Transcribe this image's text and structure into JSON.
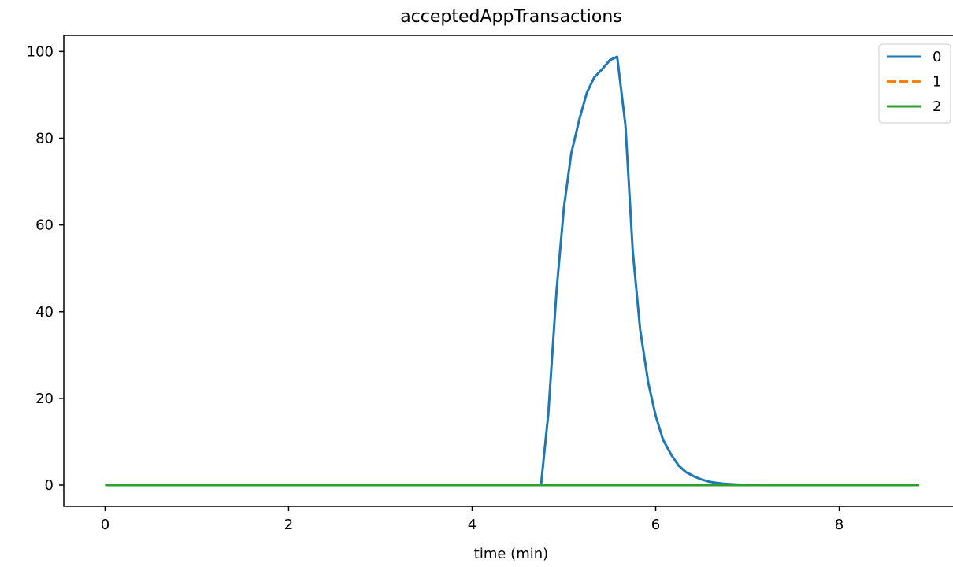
{
  "chart_data": {
    "type": "line",
    "title": "acceptedAppTransactions",
    "xlabel": "time (min)",
    "ylabel": "",
    "xlim": [
      -0.45,
      9.3
    ],
    "ylim": [
      -4.9,
      103.7
    ],
    "xticks": [
      0,
      2,
      4,
      6,
      8
    ],
    "yticks": [
      0,
      20,
      40,
      60,
      80,
      100
    ],
    "grid": false,
    "legend_position": "top-right",
    "series": [
      {
        "name": "0",
        "color": "#1f77b4",
        "style": "solid",
        "x": [
          0,
          0.5,
          1,
          1.5,
          2,
          2.5,
          3,
          3.5,
          4,
          4.5,
          4.75,
          4.83,
          4.92,
          5.0,
          5.08,
          5.17,
          5.25,
          5.33,
          5.42,
          5.5,
          5.58,
          5.67,
          5.75,
          5.83,
          5.92,
          6.0,
          6.08,
          6.17,
          6.25,
          6.33,
          6.42,
          6.5,
          6.58,
          6.67,
          6.75,
          6.83,
          6.92,
          7.0,
          7.17,
          7.33,
          7.5,
          7.75,
          8.0,
          8.5,
          8.87
        ],
        "y": [
          0,
          0,
          0,
          0,
          0,
          0,
          0,
          0,
          0,
          0,
          0,
          16.5,
          45,
          64,
          76.5,
          84.5,
          90.5,
          94,
          96,
          98,
          98.8,
          83,
          54,
          36,
          23.5,
          16,
          10.5,
          7,
          4.5,
          3,
          2,
          1.3,
          0.8,
          0.5,
          0.3,
          0.2,
          0.1,
          0.05,
          0,
          0,
          0,
          0,
          0,
          0,
          0
        ]
      },
      {
        "name": "1",
        "color": "#ff7f0e",
        "style": "dashed",
        "x": [
          0,
          8.87
        ],
        "y": [
          0,
          0
        ]
      },
      {
        "name": "2",
        "color": "#2ca02c",
        "style": "solid",
        "x": [
          0,
          8.87
        ],
        "y": [
          0,
          0
        ]
      }
    ]
  }
}
